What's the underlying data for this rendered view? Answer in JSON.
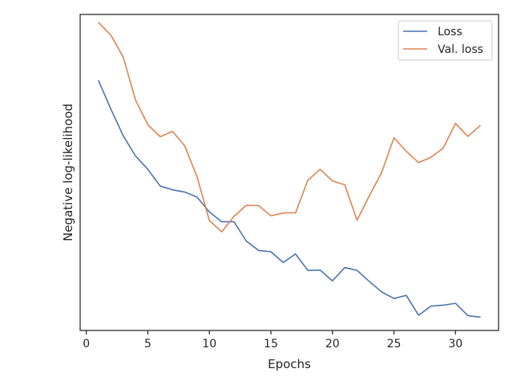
{
  "chart_data": {
    "type": "line",
    "title": "",
    "xlabel": "Epochs",
    "ylabel": "Negative log-likelihood",
    "xlim": [
      -0.5,
      33.5
    ],
    "ylim": [
      0,
      100
    ],
    "xticks": [
      "0",
      "5",
      "10",
      "15",
      "20",
      "25",
      "30"
    ],
    "yticks": [],
    "grid": false,
    "legend": "top-right",
    "x": [
      1,
      2,
      3,
      4,
      5,
      6,
      7,
      8,
      9,
      10,
      11,
      12,
      13,
      14,
      15,
      16,
      17,
      18,
      19,
      20,
      21,
      22,
      23,
      24,
      25,
      26,
      27,
      28,
      29,
      30,
      31,
      32
    ],
    "series": [
      {
        "name": "Loss",
        "color": "#4c72b0",
        "values": [
          79.0,
          70.0,
          61.6,
          55.2,
          51.0,
          45.7,
          44.5,
          43.8,
          42.2,
          37.5,
          34.4,
          34.4,
          28.3,
          25.3,
          24.9,
          21.5,
          24.2,
          19.0,
          19.1,
          15.7,
          19.9,
          19.0,
          15.5,
          12.2,
          10.1,
          11.1,
          4.8,
          7.7,
          8.0,
          8.6,
          4.7,
          4.2
        ]
      },
      {
        "name": "Val. loss",
        "color": "#dd8452",
        "values": [
          97.4,
          93.4,
          86.5,
          72.9,
          65.1,
          61.3,
          63.0,
          58.4,
          48.6,
          34.8,
          31.2,
          36.1,
          39.6,
          39.5,
          36.3,
          37.2,
          37.2,
          47.5,
          51.0,
          47.3,
          46.1,
          34.9,
          42.6,
          50.0,
          61.0,
          56.7,
          53.1,
          54.8,
          57.7,
          65.5,
          61.4,
          64.8
        ]
      }
    ]
  }
}
